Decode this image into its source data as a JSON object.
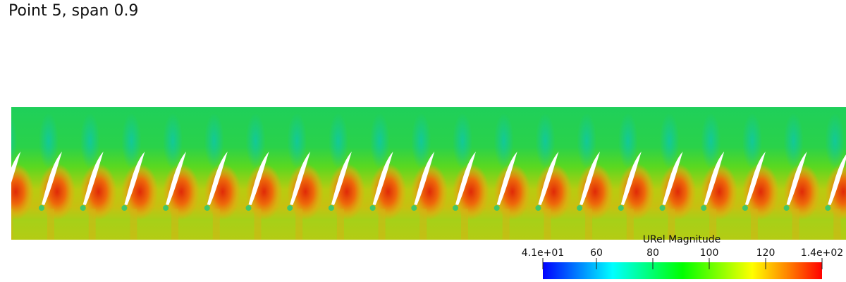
{
  "title": "Point 5, span 0.9",
  "colorbar": {
    "title": "URel Magnitude",
    "range": [
      41,
      140
    ],
    "ticks": [
      {
        "value": 41,
        "label": "4.1e+01"
      },
      60,
      80,
      100,
      120,
      {
        "value": 140,
        "label": "1.4e+02"
      }
    ]
  }
}
